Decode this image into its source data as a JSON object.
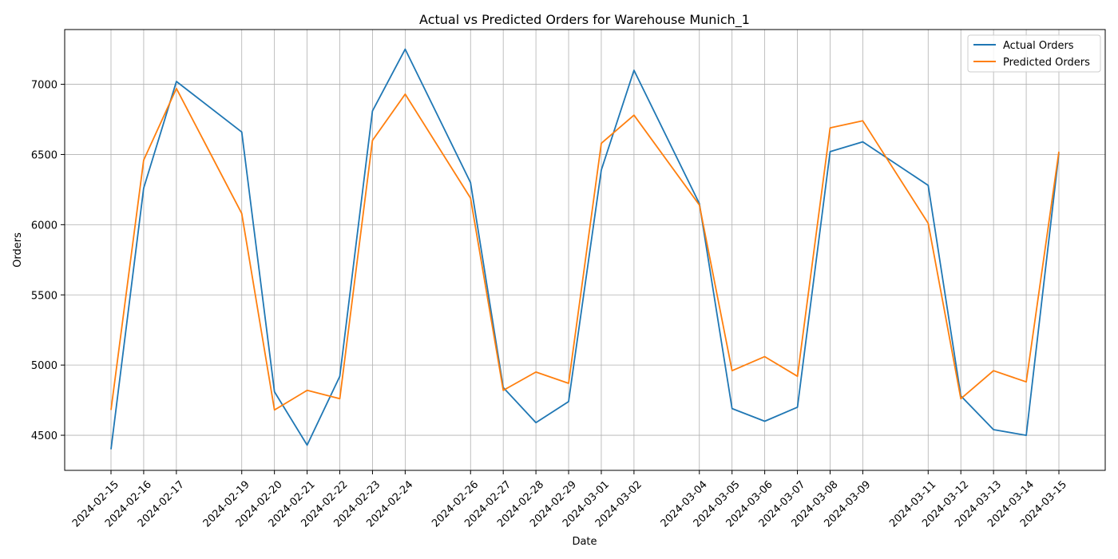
{
  "chart_data": {
    "type": "line",
    "title": "Actual vs Predicted Orders for Warehouse Munich_1",
    "xlabel": "Date",
    "ylabel": "Orders",
    "x": [
      "2024-02-15",
      "2024-02-16",
      "2024-02-17",
      "2024-02-19",
      "2024-02-20",
      "2024-02-21",
      "2024-02-22",
      "2024-02-23",
      "2024-02-24",
      "2024-02-26",
      "2024-02-27",
      "2024-02-28",
      "2024-02-29",
      "2024-03-01",
      "2024-03-02",
      "2024-03-04",
      "2024-03-05",
      "2024-03-06",
      "2024-03-07",
      "2024-03-08",
      "2024-03-09",
      "2024-03-11",
      "2024-03-12",
      "2024-03-13",
      "2024-03-14",
      "2024-03-15"
    ],
    "ylim": [
      4250,
      7390
    ],
    "yticks": [
      4500,
      5000,
      5500,
      6000,
      6500,
      7000
    ],
    "grid": true,
    "legend_position": "top-right",
    "series": [
      {
        "name": "Actual Orders",
        "color": "#1f77b4",
        "values": [
          4400,
          6260,
          7020,
          6660,
          4810,
          4430,
          4920,
          6810,
          7250,
          6300,
          4840,
          4590,
          4740,
          6390,
          7100,
          6150,
          4690,
          4600,
          4700,
          6520,
          6590,
          6280,
          4780,
          4540,
          4500,
          6510
        ]
      },
      {
        "name": "Predicted Orders",
        "color": "#ff7f0e",
        "values": [
          4680,
          6460,
          6970,
          6080,
          4680,
          4820,
          4760,
          6600,
          6930,
          6190,
          4820,
          4950,
          4870,
          6580,
          6780,
          6140,
          4960,
          5060,
          4920,
          6690,
          6740,
          6010,
          4760,
          4960,
          4880,
          6520
        ]
      }
    ]
  }
}
